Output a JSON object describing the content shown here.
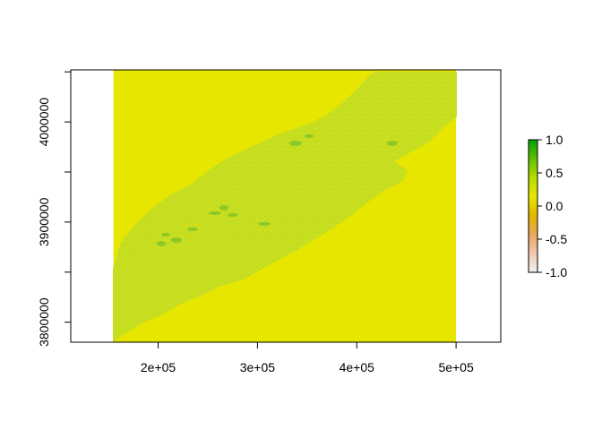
{
  "chart_data": {
    "type": "heatmap",
    "title": "",
    "xlabel": "",
    "ylabel": "",
    "xlim": [
      112000,
      545000
    ],
    "ylim": [
      3780000,
      4052000
    ],
    "raster_extent": {
      "x": [
        155000,
        500000
      ],
      "y": [
        3780000,
        4052000
      ]
    },
    "x_ticks": [
      {
        "value": 200000,
        "label": "2e+05"
      },
      {
        "value": 300000,
        "label": "3e+05"
      },
      {
        "value": 400000,
        "label": "4e+05"
      },
      {
        "value": 500000,
        "label": "5e+05"
      }
    ],
    "y_ticks": [
      {
        "value": 3800000,
        "label": "3800000"
      },
      {
        "value": 3850000,
        "label": ""
      },
      {
        "value": 3900000,
        "label": "3900000"
      },
      {
        "value": 3950000,
        "label": ""
      },
      {
        "value": 4000000,
        "label": "4000000"
      },
      {
        "value": 4050000,
        "label": ""
      }
    ],
    "background_value": 0.2,
    "region_value": 0.35,
    "legend": {
      "range": [
        -1.0,
        1.0
      ],
      "ticks": [
        {
          "value": 1.0,
          "label": "1.0"
        },
        {
          "value": 0.5,
          "label": "0.5"
        },
        {
          "value": 0.0,
          "label": "0.0"
        },
        {
          "value": -0.5,
          "label": "-0.5"
        },
        {
          "value": -1.0,
          "label": "-1.0"
        }
      ],
      "color_stops": [
        "#f2f2f2",
        "#f0c8b0",
        "#eba55c",
        "#e0b800",
        "#e6e600",
        "#b7dc00",
        "#60c000",
        "#00a000"
      ]
    },
    "colors": {
      "background": "#e6e600",
      "region": "#c5dd1c",
      "region_dark": "#5cb82c"
    }
  }
}
